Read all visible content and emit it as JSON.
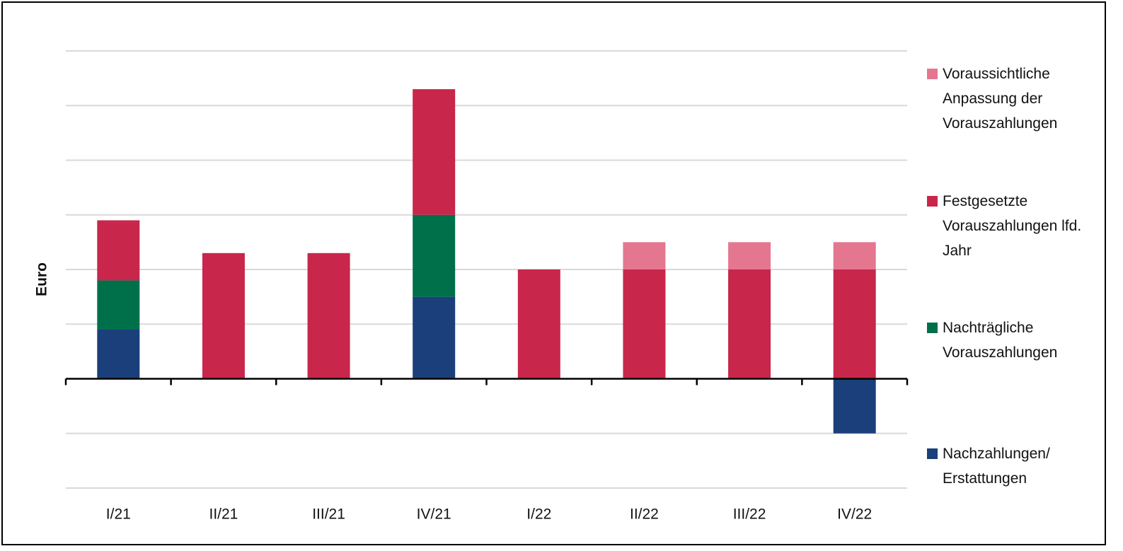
{
  "chart_data": {
    "type": "stacked_bar",
    "y_label": "Euro",
    "categories": [
      "I/21",
      "II/21",
      "III/21",
      "IV/21",
      "I/22",
      "II/22",
      "III/22",
      "IV/22"
    ],
    "series": [
      {
        "name": "Nachzahlungen/ Erstattungen",
        "color": "#1a3f7a",
        "values": [
          0.9,
          null,
          null,
          1.5,
          null,
          null,
          null,
          -1.0
        ]
      },
      {
        "name": "Nachträgliche Vorauszahlungen",
        "color": "#00704a",
        "values": [
          0.9,
          null,
          null,
          1.5,
          null,
          null,
          null,
          null
        ]
      },
      {
        "name": "Festgesetzte Vorauszahlungen lfd. Jahr",
        "color": "#c8264a",
        "values": [
          1.1,
          2.3,
          2.3,
          2.3,
          2.0,
          2.0,
          2.0,
          2.0
        ]
      },
      {
        "name": "Voraussichtliche Anpassung der Vorauszahlungen",
        "color": "#e57690",
        "values": [
          null,
          null,
          null,
          null,
          null,
          0.5,
          0.5,
          0.5
        ]
      }
    ],
    "ylim": [
      -2,
      6
    ],
    "yticks": [
      -2,
      -1,
      0,
      1,
      2,
      3,
      4,
      5,
      6
    ],
    "grid": true,
    "legend": "right"
  }
}
